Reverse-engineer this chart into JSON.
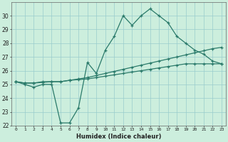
{
  "xlabel": "Humidex (Indice chaleur)",
  "x": [
    0,
    1,
    2,
    3,
    4,
    5,
    6,
    7,
    8,
    9,
    10,
    11,
    12,
    13,
    14,
    15,
    16,
    17,
    18,
    19,
    20,
    21,
    22,
    23
  ],
  "line1": [
    25.2,
    25.0,
    24.8,
    25.0,
    25.0,
    22.2,
    22.2,
    23.3,
    26.6,
    25.8,
    27.5,
    28.5,
    30.0,
    29.3,
    30.0,
    30.5,
    30.0,
    29.5,
    28.5,
    28.0,
    27.5,
    27.2,
    26.7,
    26.5
  ],
  "line2": [
    25.2,
    25.1,
    25.1,
    25.2,
    25.2,
    25.2,
    25.3,
    25.4,
    25.5,
    25.65,
    25.8,
    25.95,
    26.1,
    26.25,
    26.4,
    26.55,
    26.7,
    26.85,
    27.0,
    27.15,
    27.3,
    27.45,
    27.6,
    27.7
  ],
  "line3": [
    25.2,
    25.1,
    25.1,
    25.15,
    25.2,
    25.2,
    25.3,
    25.35,
    25.4,
    25.5,
    25.6,
    25.7,
    25.8,
    25.9,
    26.0,
    26.1,
    26.2,
    26.3,
    26.4,
    26.5,
    26.5,
    26.5,
    26.5,
    26.5
  ],
  "color": "#2a7a6a",
  "bg_color": "#cceedd",
  "grid_color": "#99cccc",
  "ylim": [
    22,
    31
  ],
  "yticks": [
    22,
    23,
    24,
    25,
    26,
    27,
    28,
    29,
    30
  ],
  "xticks": [
    0,
    1,
    2,
    3,
    4,
    5,
    6,
    7,
    8,
    9,
    10,
    11,
    12,
    13,
    14,
    15,
    16,
    17,
    18,
    19,
    20,
    21,
    22,
    23
  ]
}
